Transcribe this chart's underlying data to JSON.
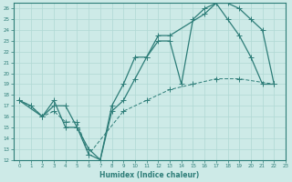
{
  "xlabel": "Humidex (Indice chaleur)",
  "bg_color": "#cdeae7",
  "grid_color": "#b0d8d4",
  "line_color": "#2d7d78",
  "xlim": [
    -0.5,
    23
  ],
  "ylim": [
    12,
    26.5
  ],
  "yticks": [
    12,
    13,
    14,
    15,
    16,
    17,
    18,
    19,
    20,
    21,
    22,
    23,
    24,
    25,
    26
  ],
  "xticks": [
    0,
    1,
    2,
    3,
    4,
    5,
    6,
    7,
    8,
    9,
    10,
    11,
    12,
    13,
    14,
    15,
    16,
    17,
    18,
    19,
    20,
    21,
    22,
    23
  ],
  "line1_x": [
    0,
    1,
    2,
    3,
    4,
    5,
    6,
    7,
    8,
    9,
    10,
    11,
    12,
    13,
    14,
    15,
    16,
    17,
    18,
    19,
    20,
    21,
    22
  ],
  "line1_y": [
    17.5,
    17.0,
    16.0,
    17.0,
    17.0,
    15.0,
    12.5,
    12.0,
    17.0,
    19.0,
    21.5,
    21.5,
    23.0,
    23.0,
    19.0,
    25.0,
    26.0,
    26.5,
    25.0,
    23.5,
    21.5,
    19.0,
    19.0
  ],
  "line2_x": [
    0,
    2,
    3,
    4,
    5,
    6,
    7,
    8,
    9,
    10,
    11,
    12,
    13,
    16,
    17,
    18,
    19,
    20,
    21,
    22
  ],
  "line2_y": [
    17.5,
    16.0,
    17.5,
    15.0,
    15.0,
    13.0,
    12.0,
    16.5,
    17.5,
    19.5,
    21.5,
    23.5,
    23.5,
    25.5,
    26.5,
    26.5,
    26.0,
    25.0,
    24.0,
    19.0
  ],
  "line3_x": [
    0,
    1,
    2,
    3,
    4,
    5,
    6,
    9,
    11,
    13,
    15,
    17,
    19,
    22
  ],
  "line3_y": [
    17.5,
    17.0,
    16.0,
    16.5,
    15.5,
    15.5,
    12.5,
    16.5,
    17.5,
    18.5,
    19.0,
    19.5,
    19.5,
    19.0
  ]
}
